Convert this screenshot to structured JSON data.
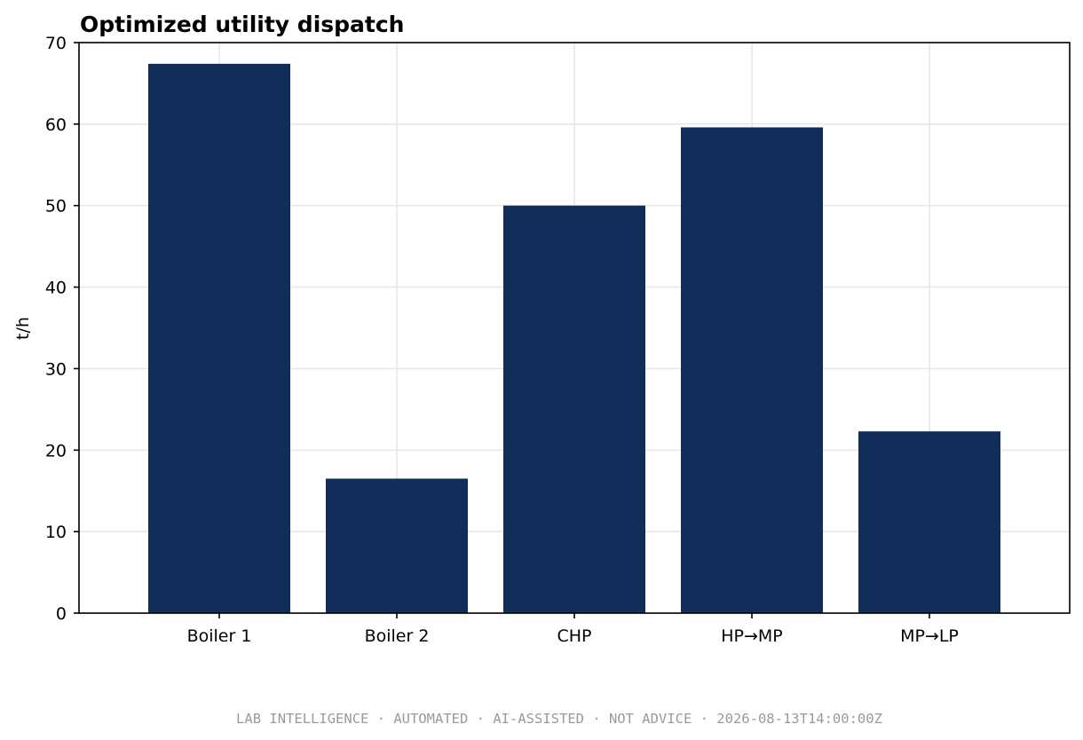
{
  "chart_data": {
    "type": "bar",
    "title": "Optimized utility dispatch",
    "xlabel": "",
    "ylabel": "t/h",
    "categories": [
      "Boiler 1",
      "Boiler 2",
      "CHP",
      "HP→MP",
      "MP→LP"
    ],
    "values": [
      67.4,
      16.5,
      50.0,
      59.6,
      22.3
    ],
    "ylim": [
      0,
      70
    ],
    "yticks": [
      0,
      10,
      20,
      30,
      40,
      50,
      60,
      70
    ],
    "grid": true,
    "legend": "none",
    "bar_color": "#112d5a"
  },
  "footer": {
    "text": "LAB INTELLIGENCE · AUTOMATED · AI-ASSISTED · NOT ADVICE · 2026-08-13T14:00:00Z"
  }
}
